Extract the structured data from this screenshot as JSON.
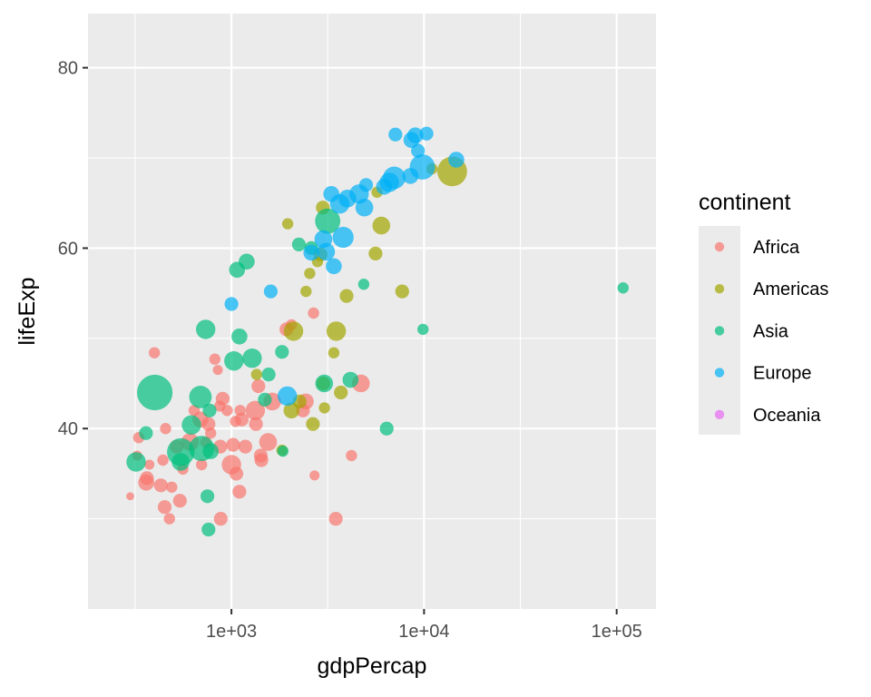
{
  "chart_data": {
    "type": "scatter",
    "title": "",
    "xlabel": "gdpPercap",
    "ylabel": "lifeExp",
    "x_scale": "log10",
    "xlim": [
      180,
      160000
    ],
    "ylim": [
      20,
      86
    ],
    "x_ticks": [
      {
        "value": 1000,
        "label": "1e+03"
      },
      {
        "value": 10000,
        "label": "1e+04"
      },
      {
        "value": 100000,
        "label": "1e+05"
      }
    ],
    "y_ticks": [
      {
        "value": 40,
        "label": "40"
      },
      {
        "value": 60,
        "label": "60"
      },
      {
        "value": 80,
        "label": "80"
      }
    ],
    "grid": true,
    "size_encoding": "pop",
    "point_alpha": 0.7,
    "legend": {
      "title": "continent",
      "placement": "right",
      "entries": [
        {
          "name": "Africa",
          "color": "#F8766D"
        },
        {
          "name": "Americas",
          "color": "#A3A500"
        },
        {
          "name": "Asia",
          "color": "#00BF7D"
        },
        {
          "name": "Europe",
          "color": "#00B0F6"
        },
        {
          "name": "Oceania",
          "color": "#E76BF3"
        }
      ]
    },
    "series": [
      {
        "name": "Africa",
        "color": "#F8766D",
        "points": [
          [
            298,
            32.5,
            0.5
          ],
          [
            324,
            37.0,
            0.8
          ],
          [
            330,
            39.0,
            1.0
          ],
          [
            375,
            36.0,
            0.8
          ],
          [
            361,
            34.0,
            2.0
          ],
          [
            364,
            34.5,
            1.5
          ],
          [
            398,
            48.4,
            1.0
          ],
          [
            430,
            33.7,
            1.5
          ],
          [
            441,
            36.5,
            1.0
          ],
          [
            450,
            31.3,
            1.5
          ],
          [
            476,
            30.0,
            1.0
          ],
          [
            455,
            40.0,
            1.0
          ],
          [
            490,
            33.5,
            1.0
          ],
          [
            520,
            38.0,
            1.5
          ],
          [
            540,
            32.0,
            1.5
          ],
          [
            560,
            35.5,
            1.0
          ],
          [
            610,
            38.5,
            2.5
          ],
          [
            640,
            42.0,
            1.0
          ],
          [
            690,
            41.0,
            2.0
          ],
          [
            700,
            36.0,
            1.0
          ],
          [
            735,
            38.5,
            1.0
          ],
          [
            760,
            40.5,
            1.5
          ],
          [
            780,
            39.5,
            1.0
          ],
          [
            820,
            47.7,
            1.0
          ],
          [
            850,
            46.5,
            0.8
          ],
          [
            870,
            42.5,
            1.0
          ],
          [
            880,
            30.0,
            1.5
          ],
          [
            875,
            38.0,
            1.5
          ],
          [
            900,
            43.3,
            1.5
          ],
          [
            950,
            42.0,
            1.0
          ],
          [
            1000,
            36.0,
            3.0
          ],
          [
            1050,
            40.8,
            1.0
          ],
          [
            1020,
            38.2,
            1.5
          ],
          [
            1060,
            35.0,
            1.5
          ],
          [
            1100,
            33.0,
            1.5
          ],
          [
            1110,
            42.0,
            1.0
          ],
          [
            1130,
            41.0,
            1.5
          ],
          [
            1180,
            38.0,
            1.5
          ],
          [
            1330,
            42.0,
            3.0
          ],
          [
            1340,
            40.5,
            1.5
          ],
          [
            1380,
            44.7,
            1.5
          ],
          [
            1420,
            37.0,
            1.5
          ],
          [
            1430,
            36.5,
            1.5
          ],
          [
            1550,
            38.5,
            2.5
          ],
          [
            1630,
            43.0,
            2.5
          ],
          [
            1930,
            51.0,
            1.5
          ],
          [
            2050,
            51.5,
            1.0
          ],
          [
            2350,
            42.0,
            1.5
          ],
          [
            2430,
            43.0,
            2.0
          ],
          [
            2670,
            52.8,
            1.0
          ],
          [
            2700,
            34.8,
            0.8
          ],
          [
            3480,
            30.0,
            1.5
          ],
          [
            4200,
            37.0,
            1.0
          ],
          [
            4700,
            45.0,
            2.5
          ]
        ]
      },
      {
        "name": "Americas",
        "color": "#A3A500",
        "points": [
          [
            1350,
            46.0,
            1.0
          ],
          [
            1830,
            37.6,
            1.0
          ],
          [
            1960,
            62.7,
            1.0
          ],
          [
            2100,
            50.8,
            3.0
          ],
          [
            2050,
            42.0,
            2.0
          ],
          [
            2260,
            43.0,
            1.5
          ],
          [
            2440,
            55.2,
            1.0
          ],
          [
            2550,
            57.2,
            1.0
          ],
          [
            2650,
            40.5,
            1.5
          ],
          [
            2800,
            58.5,
            1.0
          ],
          [
            2900,
            59.3,
            1.5
          ],
          [
            2980,
            64.5,
            1.5
          ],
          [
            3000,
            45.0,
            1.5
          ],
          [
            3040,
            42.3,
            1.0
          ],
          [
            3400,
            48.4,
            1.0
          ],
          [
            3500,
            50.8,
            3.0
          ],
          [
            3700,
            44.0,
            1.5
          ],
          [
            3960,
            54.7,
            1.5
          ],
          [
            5600,
            59.4,
            1.5
          ],
          [
            5700,
            66.2,
            1.0
          ],
          [
            6000,
            62.5,
            2.5
          ],
          [
            7700,
            55.2,
            1.5
          ],
          [
            11000,
            68.8,
            1.0
          ],
          [
            14000,
            68.5,
            7.0
          ]
        ]
      },
      {
        "name": "Asia",
        "color": "#00BF7D",
        "points": [
          [
            320,
            36.3,
            3.0
          ],
          [
            360,
            39.5,
            1.5
          ],
          [
            400,
            44.0,
            10.0
          ],
          [
            546,
            37.4,
            6.0
          ],
          [
            545,
            36.3,
            2.5
          ],
          [
            620,
            40.4,
            3.0
          ],
          [
            690,
            43.5,
            4.0
          ],
          [
            700,
            37.8,
            5.0
          ],
          [
            735,
            51.0,
            3.0
          ],
          [
            750,
            32.5,
            1.5
          ],
          [
            760,
            28.8,
            1.5
          ],
          [
            770,
            42.0,
            1.5
          ],
          [
            780,
            37.5,
            2.0
          ],
          [
            1030,
            47.5,
            3.0
          ],
          [
            1070,
            57.6,
            2.0
          ],
          [
            1100,
            50.2,
            2.0
          ],
          [
            1200,
            58.5,
            2.0
          ],
          [
            1280,
            47.8,
            3.0
          ],
          [
            1490,
            43.2,
            1.5
          ],
          [
            1560,
            46.0,
            1.5
          ],
          [
            1830,
            48.5,
            1.5
          ],
          [
            1850,
            37.5,
            1.0
          ],
          [
            2240,
            60.4,
            1.5
          ],
          [
            2600,
            60.0,
            1.5
          ],
          [
            3030,
            45.0,
            2.5
          ],
          [
            3160,
            63.0,
            5.0
          ],
          [
            4150,
            45.4,
            2.0
          ],
          [
            4860,
            56.0,
            1.0
          ],
          [
            6400,
            40.0,
            1.5
          ],
          [
            9870,
            51.0,
            1.0
          ],
          [
            108000,
            55.6,
            1.0
          ]
        ]
      },
      {
        "name": "Europe",
        "color": "#00B0F6",
        "points": [
          [
            1000,
            53.8,
            1.5
          ],
          [
            1600,
            55.2,
            1.5
          ],
          [
            1950,
            43.6,
            3.0
          ],
          [
            2600,
            59.5,
            2.0
          ],
          [
            3000,
            61.0,
            2.5
          ],
          [
            3100,
            59.6,
            2.5
          ],
          [
            3300,
            66.0,
            2.0
          ],
          [
            3400,
            58.0,
            2.0
          ],
          [
            3650,
            64.9,
            3.0
          ],
          [
            3800,
            61.2,
            3.5
          ],
          [
            4000,
            65.5,
            2.5
          ],
          [
            4600,
            66.0,
            3.0
          ],
          [
            4900,
            64.5,
            2.5
          ],
          [
            5000,
            67.0,
            1.5
          ],
          [
            6200,
            66.8,
            2.0
          ],
          [
            6600,
            67.3,
            3.0
          ],
          [
            7000,
            67.8,
            4.0
          ],
          [
            7100,
            72.6,
            1.5
          ],
          [
            8500,
            68.0,
            2.0
          ],
          [
            8600,
            72.0,
            2.0
          ],
          [
            9000,
            72.5,
            2.0
          ],
          [
            9300,
            70.8,
            1.5
          ],
          [
            9800,
            69.0,
            5.0
          ],
          [
            10300,
            72.7,
            1.5
          ],
          [
            14700,
            69.8,
            2.0
          ]
        ]
      },
      {
        "name": "Oceania",
        "color": "#E76BF3",
        "points": []
      }
    ]
  }
}
